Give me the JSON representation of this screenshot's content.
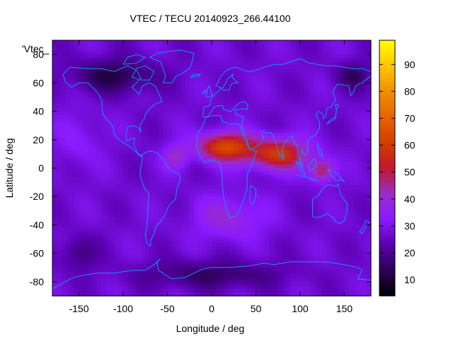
{
  "chart_data": {
    "type": "heatmap",
    "title": "VTEC / TECU 20140923_266.44100",
    "xlabel": "Longitude / deg",
    "ylabel": "Latitude / deg",
    "key_label": "'Vtec_",
    "xlim": [
      -180,
      180
    ],
    "ylim": [
      -90,
      90
    ],
    "x_ticks": [
      -150,
      -100,
      -50,
      0,
      50,
      100,
      150
    ],
    "y_ticks": [
      -80,
      -60,
      -40,
      -20,
      0,
      20,
      40,
      60,
      80
    ],
    "colorbar": {
      "range": [
        4,
        99
      ],
      "ticks": [
        10,
        20,
        30,
        40,
        50,
        60,
        70,
        80,
        90
      ]
    },
    "field": {
      "background": 27,
      "blobs": [
        {
          "lon": 15,
          "lat": 15,
          "slon": 30,
          "slat": 10,
          "amp": 36
        },
        {
          "lon": 75,
          "lat": 10,
          "slon": 35,
          "slat": 11,
          "amp": 32
        },
        {
          "lon": 125,
          "lat": -2,
          "slon": 14,
          "slat": 8,
          "amp": 22
        },
        {
          "lon": -40,
          "lat": 8,
          "slon": 14,
          "slat": 9,
          "amp": 14
        },
        {
          "lon": 20,
          "lat": -35,
          "slon": 40,
          "slat": 15,
          "amp": 12
        },
        {
          "lon": -150,
          "lat": 20,
          "slon": 25,
          "slat": 20,
          "amp": 6
        },
        {
          "lon": 0,
          "lat": -75,
          "slon": 80,
          "slat": 10,
          "amp": -12
        },
        {
          "lon": -110,
          "lat": 65,
          "slon": 50,
          "slat": 12,
          "amp": -15
        },
        {
          "lon": 160,
          "lat": 65,
          "slon": 20,
          "slat": 10,
          "amp": -12
        },
        {
          "lon": -150,
          "lat": -60,
          "slon": 20,
          "slat": 12,
          "amp": -10
        }
      ]
    },
    "colors": {
      "coastline": "#1a8cff",
      "frame": "#000000"
    }
  }
}
